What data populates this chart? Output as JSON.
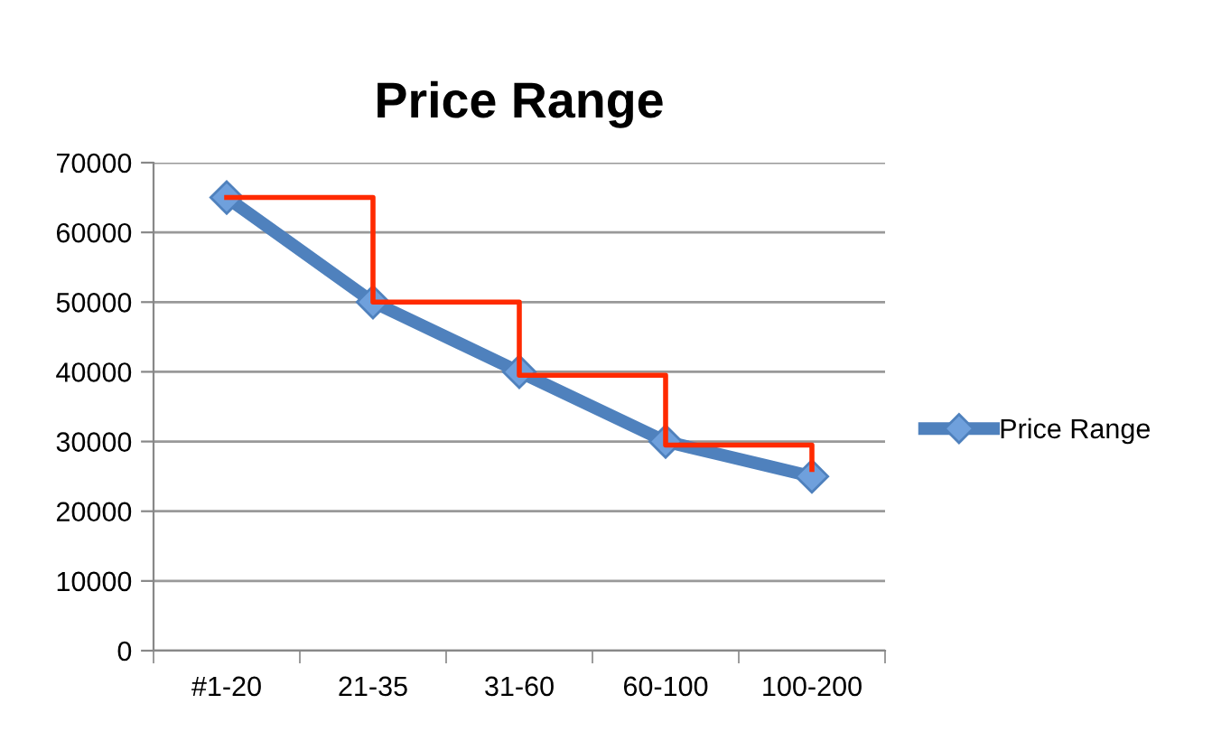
{
  "chart_data": {
    "type": "line",
    "title": "Price Range",
    "categories": [
      "#1-20",
      "21-35",
      "31-60",
      "60-100",
      "100-200"
    ],
    "series": [
      {
        "name": "Price Range",
        "color": "#4f81bd",
        "values": [
          65000,
          50000,
          40000,
          30000,
          25000
        ],
        "marker": "diamond"
      },
      {
        "type": "step",
        "color": "#ff2a00",
        "values": [
          65000,
          50000,
          39500,
          29500,
          26000
        ],
        "marker": "none"
      }
    ],
    "ylim": [
      0,
      70000
    ],
    "yticks": [
      0,
      10000,
      20000,
      30000,
      40000,
      50000,
      60000,
      70000
    ],
    "grid": "y",
    "legend": "right"
  }
}
